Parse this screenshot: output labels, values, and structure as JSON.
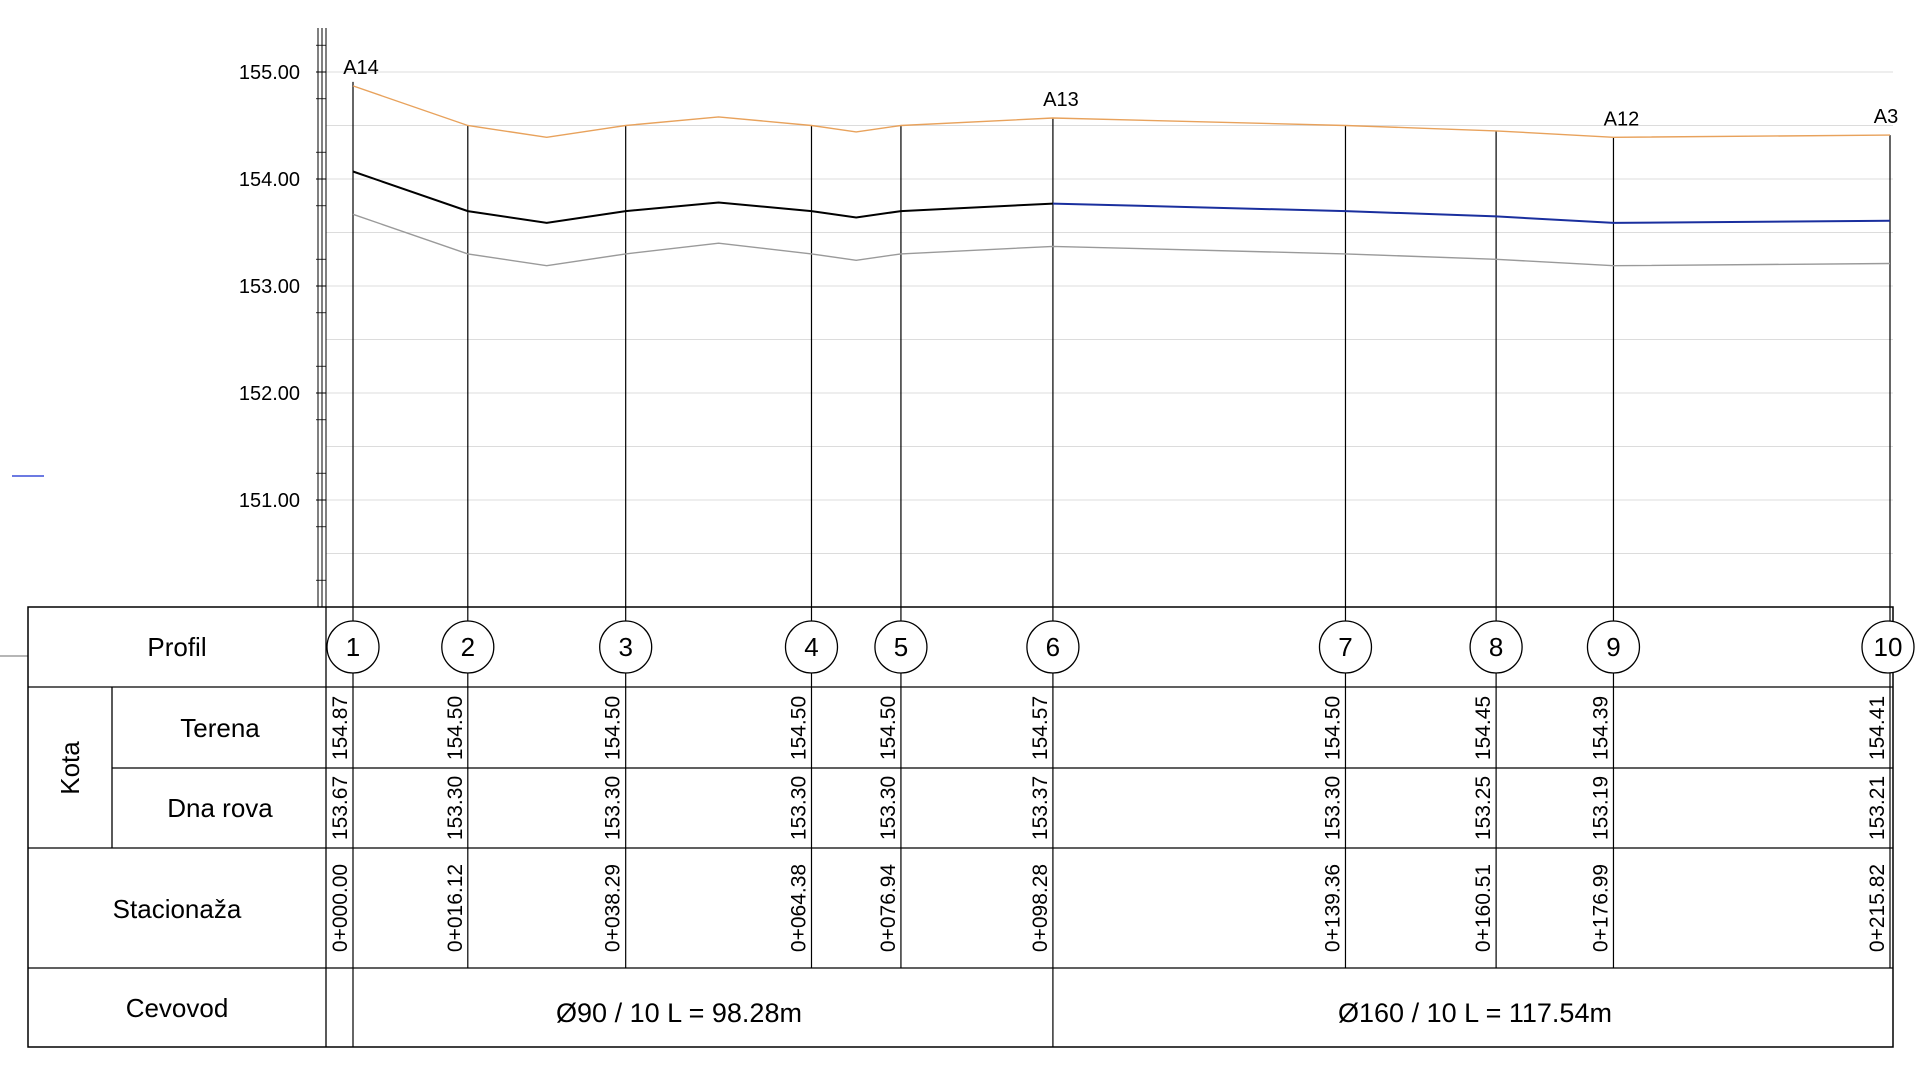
{
  "chart_data": {
    "type": "line",
    "ylim": [
      150.0,
      155.5
    ],
    "yticks": [
      155.0,
      154.0,
      153.0,
      152.0,
      151.0
    ],
    "ytick_labels": [
      "155.00",
      "154.00",
      "153.00",
      "152.00",
      "151.00"
    ],
    "grid": true,
    "stations": [
      0.0,
      16.12,
      38.29,
      64.38,
      76.94,
      98.28,
      139.36,
      160.51,
      176.99,
      215.82
    ],
    "station_labels": [
      "0+000.00",
      "0+016.12",
      "0+038.29",
      "0+064.38",
      "0+076.94",
      "0+098.28",
      "0+139.36",
      "0+160.51",
      "0+176.99",
      "0+215.82"
    ],
    "profiles": [
      "1",
      "2",
      "3",
      "4",
      "5",
      "6",
      "7",
      "8",
      "9",
      "10"
    ],
    "terrain": [
      154.87,
      154.5,
      154.5,
      154.5,
      154.5,
      154.57,
      154.5,
      154.45,
      154.39,
      154.41
    ],
    "terrain_labels": [
      "154.87",
      "154.50",
      "154.50",
      "154.50",
      "154.50",
      "154.57",
      "154.50",
      "154.45",
      "154.39",
      "154.41"
    ],
    "trench_bottom": [
      153.67,
      153.3,
      153.3,
      153.3,
      153.3,
      153.37,
      153.3,
      153.25,
      153.19,
      153.21
    ],
    "trench_labels": [
      "153.67",
      "153.30",
      "153.30",
      "153.30",
      "153.30",
      "153.37",
      "153.30",
      "153.25",
      "153.19",
      "153.21"
    ],
    "series": [
      {
        "key": "terrain",
        "color": "#e8a25c",
        "x": [
          0.0,
          16.12,
          27.2,
          38.29,
          51.33,
          64.38,
          70.66,
          76.94,
          98.28,
          139.36,
          160.51,
          176.99,
          215.82
        ],
        "y": [
          154.87,
          154.5,
          154.39,
          154.5,
          154.58,
          154.5,
          154.44,
          154.5,
          154.57,
          154.5,
          154.45,
          154.39,
          154.41
        ]
      },
      {
        "key": "pipe-dn90",
        "color": "#000000",
        "x": [
          0.0,
          16.12,
          27.2,
          38.29,
          51.33,
          64.38,
          70.66,
          76.94,
          98.28
        ],
        "y": [
          154.07,
          153.7,
          153.59,
          153.7,
          153.78,
          153.7,
          153.64,
          153.7,
          153.77
        ]
      },
      {
        "key": "pipe-dn160",
        "color": "#1a2f9e",
        "x": [
          98.28,
          139.36,
          160.51,
          176.99,
          215.82
        ],
        "y": [
          153.77,
          153.7,
          153.65,
          153.59,
          153.61
        ]
      },
      {
        "key": "trench-bottom",
        "color": "#9a9a9a",
        "x": [
          0.0,
          16.12,
          27.2,
          38.29,
          51.33,
          64.38,
          70.66,
          76.94,
          98.28,
          139.36,
          160.51,
          176.99,
          215.82
        ],
        "y": [
          153.67,
          153.3,
          153.19,
          153.3,
          153.4,
          153.3,
          153.24,
          153.3,
          153.37,
          153.3,
          153.25,
          153.19,
          153.21
        ]
      }
    ],
    "annotations": [
      {
        "text": "A14",
        "station_index": 0
      },
      {
        "text": "A13",
        "station_index": 5
      },
      {
        "text": "A12",
        "station_index": 8
      },
      {
        "text": "A3",
        "station_index": 9
      }
    ]
  },
  "table": {
    "profil_label": "Profil",
    "kota_label": "Kota",
    "terena_label": "Terena",
    "dna_rova_label": "Dna rova",
    "stacionaza_label": "Stacionaža",
    "cevovod_label": "Cevovod",
    "pipe_segments": [
      {
        "label": "Ø90 / 10  L = 98.28m",
        "from_index": 0,
        "to_index": 5
      },
      {
        "label": "Ø160 / 10  L = 117.54m",
        "from_index": 5,
        "to_index": 9
      }
    ]
  },
  "colors": {
    "grid": "#dcdcdc",
    "table_line": "#000000",
    "legend_mark": "#3b4fd8"
  }
}
